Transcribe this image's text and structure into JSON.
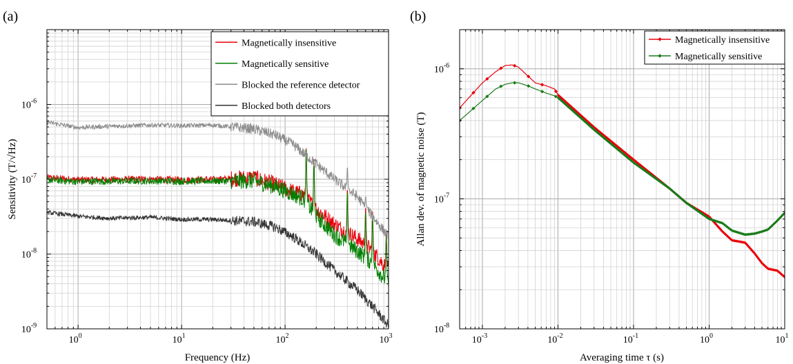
{
  "chart_data": [
    {
      "type": "line",
      "panel_label": "(a)",
      "xlabel": "Frequency (Hz)",
      "ylabel": "Sensitivity (T/√Hz)",
      "xscale": "log",
      "yscale": "log",
      "xlim": [
        0.5,
        1000
      ],
      "ylim": [
        1e-09,
        1e-05
      ],
      "grid": true,
      "legend_position": "top-right",
      "x_tick_labels": [
        {
          "base": "10",
          "exp": "0",
          "value": 1
        },
        {
          "base": "10",
          "exp": "1",
          "value": 10
        },
        {
          "base": "10",
          "exp": "2",
          "value": 100
        },
        {
          "base": "10",
          "exp": "3",
          "value": 1000
        }
      ],
      "y_tick_labels": [
        {
          "base": "10",
          "exp": "-9",
          "value": 1e-09
        },
        {
          "base": "10",
          "exp": "-8",
          "value": 1e-08
        },
        {
          "base": "10",
          "exp": "-7",
          "value": 1e-07
        },
        {
          "base": "10",
          "exp": "-6",
          "value": 1e-06
        }
      ],
      "series": [
        {
          "name": "Magnetically insensitive",
          "color": "#e8000b",
          "noise": 0.08,
          "points": [
            [
              0.5,
              1.05e-07
            ],
            [
              1,
              9.8e-08
            ],
            [
              2,
              9.9e-08
            ],
            [
              5,
              1e-07
            ],
            [
              10,
              9.8e-08
            ],
            [
              20,
              9.9e-08
            ],
            [
              50,
              1.05e-07
            ],
            [
              80,
              8.5e-08
            ],
            [
              120,
              6.8e-08
            ],
            [
              150,
              6.2e-08
            ],
            [
              200,
              4e-08
            ],
            [
              300,
              2.5e-08
            ],
            [
              500,
              1.6e-08
            ],
            [
              700,
              1.1e-08
            ],
            [
              1000,
              6e-09
            ]
          ],
          "peaks": [
            [
              50,
              1.2e-07
            ],
            [
              160,
              2.6e-07
            ],
            [
              190,
              2e-07
            ],
            [
              400,
              8e-08
            ],
            [
              600,
              4.5e-08
            ],
            [
              700,
              3.8e-08
            ],
            [
              950,
              2e-08
            ]
          ]
        },
        {
          "name": "Magnetically sensitive",
          "color": "#008000",
          "noise": 0.08,
          "points": [
            [
              0.5,
              9.8e-08
            ],
            [
              1,
              9.3e-08
            ],
            [
              2,
              9.4e-08
            ],
            [
              5,
              9.5e-08
            ],
            [
              10,
              9.4e-08
            ],
            [
              20,
              9.5e-08
            ],
            [
              50,
              9.5e-08
            ],
            [
              80,
              8e-08
            ],
            [
              120,
              6.3e-08
            ],
            [
              150,
              5.5e-08
            ],
            [
              200,
              3.2e-08
            ],
            [
              300,
              1.8e-08
            ],
            [
              500,
              1.1e-08
            ],
            [
              700,
              7.5e-09
            ],
            [
              1000,
              4e-09
            ]
          ],
          "peaks": [
            [
              160,
              2.5e-07
            ],
            [
              190,
              1.9e-07
            ],
            [
              400,
              7.5e-08
            ],
            [
              600,
              4e-08
            ],
            [
              700,
              3.5e-08
            ],
            [
              950,
              1.8e-08
            ]
          ]
        },
        {
          "name": "Blocked the reference detector",
          "color": "#8c8c8c",
          "noise": 0.05,
          "points": [
            [
              0.5,
              5.8e-07
            ],
            [
              1,
              4.9e-07
            ],
            [
              2,
              5.1e-07
            ],
            [
              5,
              5.3e-07
            ],
            [
              10,
              5.2e-07
            ],
            [
              20,
              5.3e-07
            ],
            [
              50,
              4.7e-07
            ],
            [
              80,
              3.9e-07
            ],
            [
              120,
              2.9e-07
            ],
            [
              200,
              1.6e-07
            ],
            [
              300,
              1e-07
            ],
            [
              500,
              5.8e-08
            ],
            [
              700,
              3.2e-08
            ],
            [
              1000,
              1.7e-08
            ]
          ],
          "peaks": [
            [
              400,
              1.5e-07
            ],
            [
              600,
              6e-08
            ]
          ]
        },
        {
          "name": "Blocked both detectors",
          "color": "#333333",
          "noise": 0.05,
          "points": [
            [
              0.5,
              3.6e-08
            ],
            [
              1,
              3.2e-08
            ],
            [
              2,
              3e-08
            ],
            [
              5,
              3.1e-08
            ],
            [
              10,
              2.9e-08
            ],
            [
              20,
              2.9e-08
            ],
            [
              50,
              2.7e-08
            ],
            [
              80,
              2.3e-08
            ],
            [
              120,
              1.7e-08
            ],
            [
              200,
              1e-08
            ],
            [
              300,
              6e-09
            ],
            [
              500,
              3.3e-09
            ],
            [
              700,
              2e-09
            ],
            [
              1000,
              1.1e-09
            ]
          ],
          "peaks": []
        }
      ]
    },
    {
      "type": "line",
      "panel_label": "(b)",
      "xlabel": "Averaging time τ (s)",
      "ylabel": "Allan dev. of magnetic noise (T)",
      "xscale": "log",
      "yscale": "log",
      "xlim": [
        0.0005,
        10
      ],
      "ylim": [
        1e-08,
        2e-06
      ],
      "grid": true,
      "legend_position": "top-right",
      "x_tick_labels": [
        {
          "base": "10",
          "exp": "-3",
          "value": 0.001
        },
        {
          "base": "10",
          "exp": "-2",
          "value": 0.01
        },
        {
          "base": "10",
          "exp": "-1",
          "value": 0.1
        },
        {
          "base": "10",
          "exp": "0",
          "value": 1
        },
        {
          "base": "10",
          "exp": "1",
          "value": 10
        }
      ],
      "y_tick_labels": [
        {
          "base": "10",
          "exp": "-8",
          "value": 1e-08
        },
        {
          "base": "10",
          "exp": "-7",
          "value": 1e-07
        },
        {
          "base": "10",
          "exp": "-6",
          "value": 1e-06
        }
      ],
      "series": [
        {
          "name": "Magnetically insensitive",
          "color": "#e8000b",
          "marker": "diamond",
          "points": [
            [
              0.0005,
              5e-07
            ],
            [
              0.001,
              7.8e-07
            ],
            [
              0.0015,
              9.5e-07
            ],
            [
              0.002,
              1.06e-06
            ],
            [
              0.0025,
              1.07e-06
            ],
            [
              0.003,
              1.03e-06
            ],
            [
              0.004,
              8.8e-07
            ],
            [
              0.005,
              7.8e-07
            ],
            [
              0.007,
              7.4e-07
            ],
            [
              0.009,
              7e-07
            ],
            [
              0.01,
              6.3e-07
            ],
            [
              0.03,
              3.55e-07
            ],
            [
              0.1,
              2e-07
            ],
            [
              0.3,
              1.2e-07
            ],
            [
              0.5,
              9.3e-08
            ],
            [
              1,
              7.3e-08
            ],
            [
              1.5,
              5.6e-08
            ],
            [
              2,
              4.8e-08
            ],
            [
              3,
              4.6e-08
            ],
            [
              4,
              3.8e-08
            ],
            [
              5,
              3.2e-08
            ],
            [
              6,
              2.9e-08
            ],
            [
              8,
              2.8e-08
            ],
            [
              10,
              2.5e-08
            ]
          ]
        },
        {
          "name": "Magnetically sensitive",
          "color": "#1a7a1a",
          "marker": "diamond",
          "points": [
            [
              0.0005,
              4e-07
            ],
            [
              0.001,
              5.7e-07
            ],
            [
              0.0015,
              7e-07
            ],
            [
              0.002,
              7.6e-07
            ],
            [
              0.0025,
              7.8e-07
            ],
            [
              0.003,
              7.8e-07
            ],
            [
              0.004,
              7.4e-07
            ],
            [
              0.005,
              7e-07
            ],
            [
              0.007,
              6.5e-07
            ],
            [
              0.009,
              6.2e-07
            ],
            [
              0.01,
              6e-07
            ],
            [
              0.03,
              3.4e-07
            ],
            [
              0.1,
              1.9e-07
            ],
            [
              0.3,
              1.2e-07
            ],
            [
              0.5,
              9.3e-08
            ],
            [
              1,
              7e-08
            ],
            [
              1.5,
              6.5e-08
            ],
            [
              2,
              5.7e-08
            ],
            [
              3,
              5.3e-08
            ],
            [
              4,
              5.4e-08
            ],
            [
              5,
              5.6e-08
            ],
            [
              6,
              5.8e-08
            ],
            [
              8,
              6.8e-08
            ],
            [
              10,
              7.8e-08
            ]
          ]
        }
      ]
    }
  ]
}
